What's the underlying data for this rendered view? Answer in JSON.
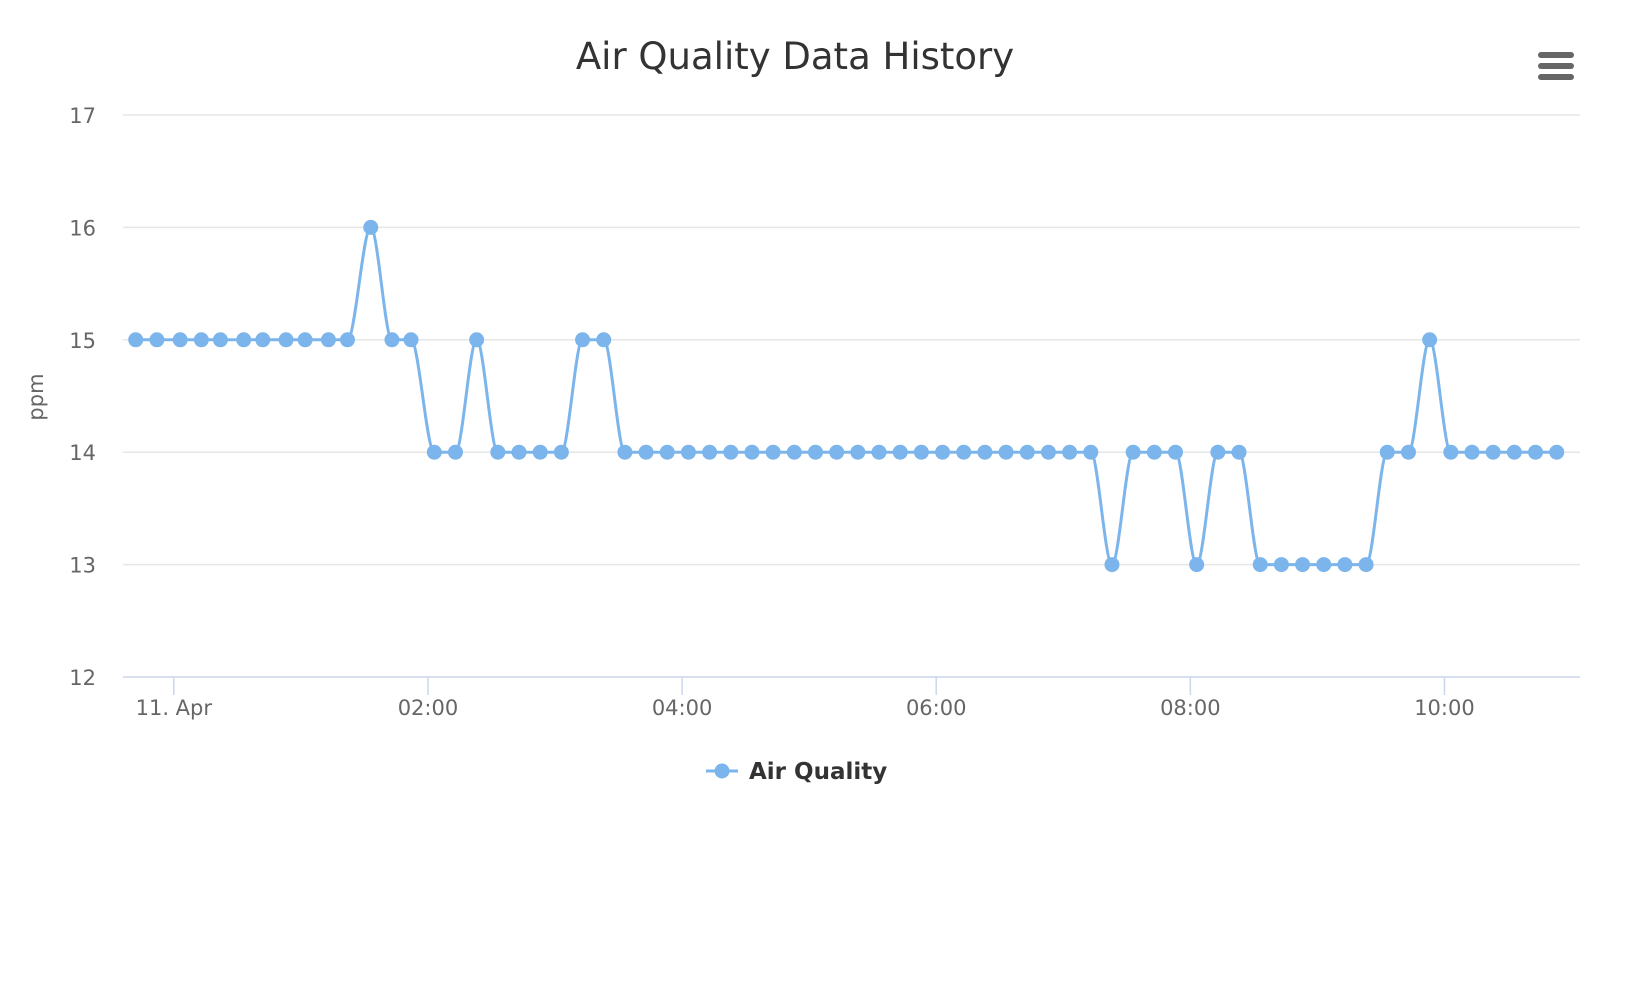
{
  "colors": {
    "series": "#7cb5ec",
    "title": "#333333",
    "tick_text": "#666666",
    "grid": "#e6e6e6",
    "axis": "#ccd6eb",
    "menu_icon": "#666666"
  },
  "menu": {
    "icon": "hamburger-menu-icon"
  },
  "chart_data": {
    "type": "line",
    "title": "Air Quality Data History",
    "xlabel": "",
    "ylabel": "ppm",
    "ylim": [
      12,
      17
    ],
    "yticks": [
      "12",
      "13",
      "14",
      "15",
      "16",
      "17"
    ],
    "xlim": [
      "2018-04-10 23:36",
      "2018-04-11 11:04"
    ],
    "xticks": [
      {
        "value": "2018-04-11 00:00",
        "label": "11. Apr"
      },
      {
        "value": "2018-04-11 02:00",
        "label": "02:00"
      },
      {
        "value": "2018-04-11 04:00",
        "label": "04:00"
      },
      {
        "value": "2018-04-11 06:00",
        "label": "06:00"
      },
      {
        "value": "2018-04-11 08:00",
        "label": "08:00"
      },
      {
        "value": "2018-04-11 10:00",
        "label": "10:00"
      }
    ],
    "grid": true,
    "legend": "bottom-center",
    "series": [
      {
        "name": "Air Quality",
        "x": [
          "2018-04-10 23:42",
          "2018-04-10 23:52",
          "2018-04-11 00:03",
          "2018-04-11 00:13",
          "2018-04-11 00:22",
          "2018-04-11 00:33",
          "2018-04-11 00:42",
          "2018-04-11 00:53",
          "2018-04-11 01:02",
          "2018-04-11 01:13",
          "2018-04-11 01:22",
          "2018-04-11 01:33",
          "2018-04-11 01:43",
          "2018-04-11 01:52",
          "2018-04-11 02:03",
          "2018-04-11 02:13",
          "2018-04-11 02:23",
          "2018-04-11 02:33",
          "2018-04-11 02:43",
          "2018-04-11 02:53",
          "2018-04-11 03:03",
          "2018-04-11 03:13",
          "2018-04-11 03:23",
          "2018-04-11 03:33",
          "2018-04-11 03:43",
          "2018-04-11 03:53",
          "2018-04-11 04:03",
          "2018-04-11 04:13",
          "2018-04-11 04:23",
          "2018-04-11 04:33",
          "2018-04-11 04:43",
          "2018-04-11 04:53",
          "2018-04-11 05:03",
          "2018-04-11 05:13",
          "2018-04-11 05:23",
          "2018-04-11 05:33",
          "2018-04-11 05:43",
          "2018-04-11 05:53",
          "2018-04-11 06:03",
          "2018-04-11 06:13",
          "2018-04-11 06:23",
          "2018-04-11 06:33",
          "2018-04-11 06:43",
          "2018-04-11 06:53",
          "2018-04-11 07:03",
          "2018-04-11 07:13",
          "2018-04-11 07:23",
          "2018-04-11 07:33",
          "2018-04-11 07:43",
          "2018-04-11 07:53",
          "2018-04-11 08:03",
          "2018-04-11 08:13",
          "2018-04-11 08:23",
          "2018-04-11 08:33",
          "2018-04-11 08:43",
          "2018-04-11 08:53",
          "2018-04-11 09:03",
          "2018-04-11 09:13",
          "2018-04-11 09:23",
          "2018-04-11 09:33",
          "2018-04-11 09:43",
          "2018-04-11 09:53",
          "2018-04-11 10:03",
          "2018-04-11 10:13",
          "2018-04-11 10:23",
          "2018-04-11 10:33",
          "2018-04-11 10:43",
          "2018-04-11 10:53"
        ],
        "values": [
          15,
          15,
          15,
          15,
          15,
          15,
          15,
          15,
          15,
          15,
          15,
          16,
          15,
          15,
          14,
          14,
          15,
          14,
          14,
          14,
          14,
          15,
          15,
          14,
          14,
          14,
          14,
          14,
          14,
          14,
          14,
          14,
          14,
          14,
          14,
          14,
          14,
          14,
          14,
          14,
          14,
          14,
          14,
          14,
          14,
          14,
          13,
          14,
          14,
          14,
          13,
          14,
          14,
          13,
          13,
          13,
          13,
          13,
          13,
          14,
          14,
          15,
          14,
          14,
          14,
          14,
          14,
          14
        ]
      }
    ]
  }
}
